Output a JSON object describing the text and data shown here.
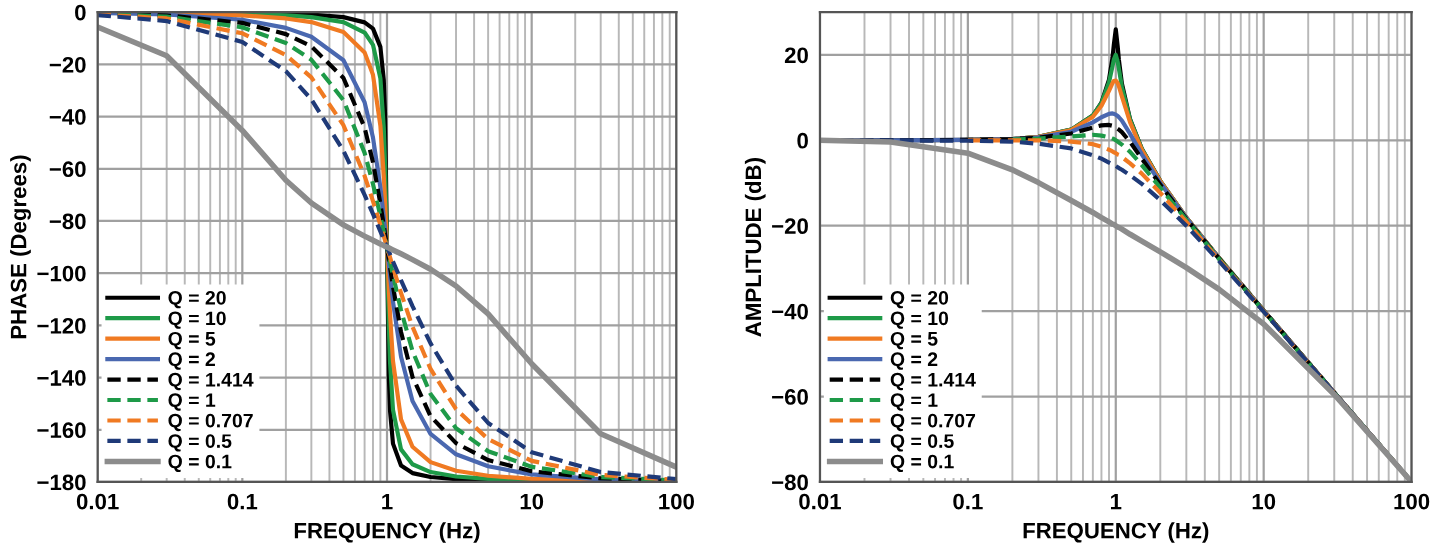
{
  "chart_data": [
    {
      "type": "line",
      "xlabel": "FREQUENCY (Hz)",
      "ylabel": "PHASE (Degrees)",
      "log": "x",
      "grid": true,
      "legend": "bottom left",
      "xlim": [
        0.01,
        100
      ],
      "xticks": [
        0.01,
        0.1,
        1,
        10,
        100
      ],
      "ylim": [
        -180,
        0
      ],
      "yticks": [
        {
          "value": -180,
          "label": "−180"
        },
        {
          "value": -160,
          "label": "−160"
        },
        {
          "value": -140,
          "label": "−140"
        },
        {
          "value": -120,
          "label": "−120"
        },
        {
          "value": -100,
          "label": "−100"
        },
        {
          "value": -80,
          "label": "−80"
        },
        {
          "value": -60,
          "label": "−60"
        },
        {
          "value": -40,
          "label": "−40"
        },
        {
          "value": -20,
          "label": "−20"
        },
        0
      ],
      "x": [
        0.01,
        0.03,
        0.1,
        0.2,
        0.3,
        0.5,
        0.7,
        0.8,
        0.9,
        0.95,
        0.97,
        1,
        1.03,
        1.05,
        1.1,
        1.25,
        1.5,
        2,
        3,
        5,
        10,
        30,
        100
      ],
      "series": [
        {
          "name": "Q = 20",
          "color": "#000000",
          "line_style": "solid",
          "values": [
            0.0,
            -0.1,
            -0.3,
            -0.6,
            -0.9,
            -1.9,
            -3.9,
            -6.3,
            -13.3,
            -26.0,
            -39.4,
            -90,
            -139.8,
            -152.9,
            -165.3,
            -173.7,
            -176.6,
            -178.1,
            -178.9,
            -179.4,
            -179.7,
            -179.9,
            -180.0
          ]
        },
        {
          "name": "Q = 10",
          "color": "#1e9a48",
          "line_style": "solid",
          "values": [
            -0.1,
            -0.2,
            -0.6,
            -1.2,
            -1.9,
            -3.8,
            -7.8,
            -12.5,
            -25.3,
            -44.3,
            -58.6,
            -90,
            -120.6,
            -134.3,
            -152.4,
            -167.5,
            -173.2,
            -176.2,
            -177.9,
            -178.8,
            -179.4,
            -179.8,
            -179.9
          ]
        },
        {
          "name": "Q = 5",
          "color": "#f07a22",
          "line_style": "solid",
          "values": [
            -0.1,
            -0.3,
            -1.2,
            -2.4,
            -3.8,
            -7.6,
            -15.4,
            -24.0,
            -43.5,
            -62.8,
            -73.1,
            -90,
            -106.5,
            -116.0,
            -133.7,
            -156.0,
            -166.5,
            -172.4,
            -175.7,
            -177.6,
            -178.8,
            -179.6,
            -179.9
          ]
        },
        {
          "name": "Q = 2",
          "color": "#4a68b0",
          "line_style": "solid",
          "values": [
            -0.3,
            -0.9,
            -2.9,
            -6.0,
            -9.4,
            -18.4,
            -34.5,
            -48.0,
            -67.1,
            -78.4,
            -83.1,
            -90,
            -96.7,
            -101.1,
            -110.9,
            -132.0,
            -149.0,
            -161.6,
            -169.4,
            -174.0,
            -177.1,
            -179.0,
            -179.7
          ]
        },
        {
          "name": "Q = 1.414",
          "color": "#000000",
          "line_style": "dashed",
          "values": [
            -0.4,
            -1.2,
            -4.1,
            -8.4,
            -13.1,
            -25.2,
            -44.2,
            -57.5,
            -73.4,
            -81.7,
            -85.1,
            -90,
            -94.8,
            -97.9,
            -105.1,
            -122.5,
            -139.7,
            -154.8,
            -165.1,
            -171.6,
            -175.9,
            -178.6,
            -179.6
          ]
        },
        {
          "name": "Q = 1",
          "color": "#1e9a48",
          "line_style": "dashed",
          "values": [
            -0.6,
            -1.7,
            -5.8,
            -11.8,
            -18.2,
            -33.7,
            -53.9,
            -65.8,
            -78.1,
            -84.1,
            -86.5,
            -90,
            -93.4,
            -95.6,
            -100.8,
            -114.2,
            -129.8,
            -146.3,
            -159.4,
            -168.2,
            -174.2,
            -178.1,
            -179.4
          ]
        },
        {
          "name": "Q = 0.707",
          "color": "#f07a22",
          "line_style": "dashed",
          "values": [
            -0.8,
            -2.4,
            -8.1,
            -16.4,
            -25.0,
            -43.3,
            -62.7,
            -72.4,
            -81.5,
            -85.8,
            -87.5,
            -90,
            -92.4,
            -93.9,
            -97.7,
            -107.6,
            -120.5,
            -136.7,
            -152.1,
            -163.6,
            -171.9,
            -177.3,
            -179.2
          ]
        },
        {
          "name": "Q = 0.5",
          "color": "#1f3a78",
          "line_style": "dashed",
          "values": [
            -1.1,
            -3.4,
            -11.4,
            -22.6,
            -33.4,
            -53.1,
            -70.0,
            -77.3,
            -84.0,
            -87.1,
            -88.3,
            -90,
            -91.7,
            -92.8,
            -95.5,
            -102.7,
            -112.6,
            -126.9,
            -143.1,
            -157.4,
            -168.6,
            -176.2,
            -178.9
          ]
        },
        {
          "name": "Q = 0.1",
          "color": "#8c8c8c",
          "line_style": "solid",
          "values": [
            -5.7,
            -16.7,
            -45.3,
            -64.4,
            -73.1,
            -81.5,
            -85.8,
            -87.4,
            -88.8,
            -89.4,
            -89.7,
            -90,
            -90.3,
            -90.6,
            -91.1,
            -92.6,
            -94.8,
            -98.5,
            -104.9,
            -115.6,
            -134.7,
            -161.5,
            -174.3
          ]
        }
      ]
    },
    {
      "type": "line",
      "xlabel": "FREQUENCY (Hz)",
      "ylabel": "AMPLITUDE (dB)",
      "log": "x",
      "grid": true,
      "legend": "bottom left",
      "xlim": [
        0.01,
        100
      ],
      "xticks": [
        0.01,
        0.1,
        1,
        10,
        100
      ],
      "ylim": [
        -80,
        30
      ],
      "yticks": [
        {
          "value": -80,
          "label": "−80"
        },
        {
          "value": -60,
          "label": "−60"
        },
        {
          "value": -40,
          "label": "−40"
        },
        {
          "value": -20,
          "label": "−20"
        },
        0,
        20
      ],
      "x": [
        0.01,
        0.03,
        0.1,
        0.2,
        0.3,
        0.5,
        0.7,
        0.8,
        0.9,
        0.95,
        0.97,
        1,
        1.03,
        1.05,
        1.1,
        1.25,
        1.5,
        2,
        3,
        5,
        10,
        30,
        100
      ],
      "series": [
        {
          "name": "Q = 20",
          "color": "#000000",
          "line_style": "solid",
          "values": [
            0.0,
            0.0,
            0.1,
            0.3,
            0.8,
            2.5,
            5.8,
            8.8,
            14.2,
            19.3,
            22.3,
            26.0,
            22.0,
            18.8,
            13.3,
            4.9,
            -2.0,
            -9.5,
            -18.1,
            -27.6,
            -39.9,
            -59.1,
            -80.0
          ]
        },
        {
          "name": "Q = 10",
          "color": "#1e9a48",
          "line_style": "solid",
          "values": [
            null,
            null,
            0.1,
            0.3,
            0.8,
            2.5,
            5.8,
            8.7,
            13.6,
            17.3,
            18.9,
            20.0,
            18.4,
            16.7,
            12.5,
            4.8,
            -2.0,
            -9.6,
            -18.1,
            -27.6,
            -39.9,
            -59.1,
            -80.0
          ]
        },
        {
          "name": "Q = 5",
          "color": "#f07a22",
          "line_style": "solid",
          "values": [
            null,
            null,
            0.1,
            0.3,
            0.8,
            2.4,
            5.5,
            8.1,
            11.6,
            13.4,
            13.9,
            14.0,
            13.4,
            12.6,
            10.3,
            4.2,
            -2.2,
            -9.6,
            -18.1,
            -27.6,
            -39.9,
            -59.1,
            -80.0
          ]
        },
        {
          "name": "Q = 2",
          "color": "#4a68b0",
          "line_style": "solid",
          "values": [
            0.0,
            0.0,
            0.1,
            0.3,
            0.7,
            2.0,
            4.2,
            5.4,
            6.2,
            6.3,
            6.2,
            6.0,
            5.7,
            5.4,
            4.6,
            1.5,
            -3.3,
            -10.0,
            -18.2,
            -27.7,
            -39.9,
            -59.1,
            -80.0
          ]
        },
        {
          "name": "Q = 1.414",
          "color": "#000000",
          "line_style": "dashed",
          "values": [
            0.0,
            0.0,
            0.1,
            0.3,
            0.6,
            1.6,
            3.0,
            3.5,
            3.6,
            3.4,
            3.2,
            3.0,
            2.7,
            2.5,
            1.9,
            -0.4,
            -4.3,
            -10.4,
            -18.4,
            -27.7,
            -39.9,
            -59.1,
            -80.0
          ]
        },
        {
          "name": "Q = 1",
          "color": "#1e9a48",
          "line_style": "dashed",
          "values": [
            null,
            null,
            null,
            0.2,
            0.4,
            0.9,
            1.3,
            1.1,
            0.7,
            0.4,
            0.3,
            0.0,
            -0.3,
            -0.5,
            -1.0,
            -2.7,
            -5.8,
            -11.1,
            -18.6,
            -27.8,
            -40.0,
            -59.1,
            -80.0
          ]
        },
        {
          "name": "Q = 0.707",
          "color": "#f07a22",
          "line_style": "dashed",
          "values": [
            null,
            null,
            0.0,
            0.0,
            0.0,
            -0.3,
            -0.9,
            -1.5,
            -2.2,
            -2.6,
            -2.8,
            -3.0,
            -3.3,
            -3.4,
            -3.9,
            -5.4,
            -7.8,
            -12.3,
            -19.1,
            -28.0,
            -40.0,
            -59.1,
            -80.0
          ]
        },
        {
          "name": "Q = 0.5",
          "color": "#1f3a78",
          "line_style": "dashed",
          "values": [
            0.0,
            0.0,
            -0.1,
            -0.3,
            -0.8,
            -1.9,
            -3.5,
            -4.3,
            -5.2,
            -5.6,
            -5.8,
            -6.0,
            -6.3,
            -6.5,
            -6.9,
            -8.2,
            -10.2,
            -14.0,
            -20.0,
            -28.3,
            -40.1,
            -59.1,
            -80.0
          ]
        },
        {
          "name": "Q = 0.1",
          "color": "#8c8c8c",
          "line_style": "solid",
          "values": [
            0.0,
            -0.4,
            -3.0,
            -6.9,
            -9.9,
            -14.1,
            -16.9,
            -18.1,
            -19.1,
            -19.6,
            -19.7,
            -20.0,
            -20.3,
            -20.4,
            -20.8,
            -22.0,
            -23.6,
            -26.1,
            -29.8,
            -34.9,
            -43.0,
            -59.5,
            -80.0
          ]
        }
      ]
    }
  ]
}
